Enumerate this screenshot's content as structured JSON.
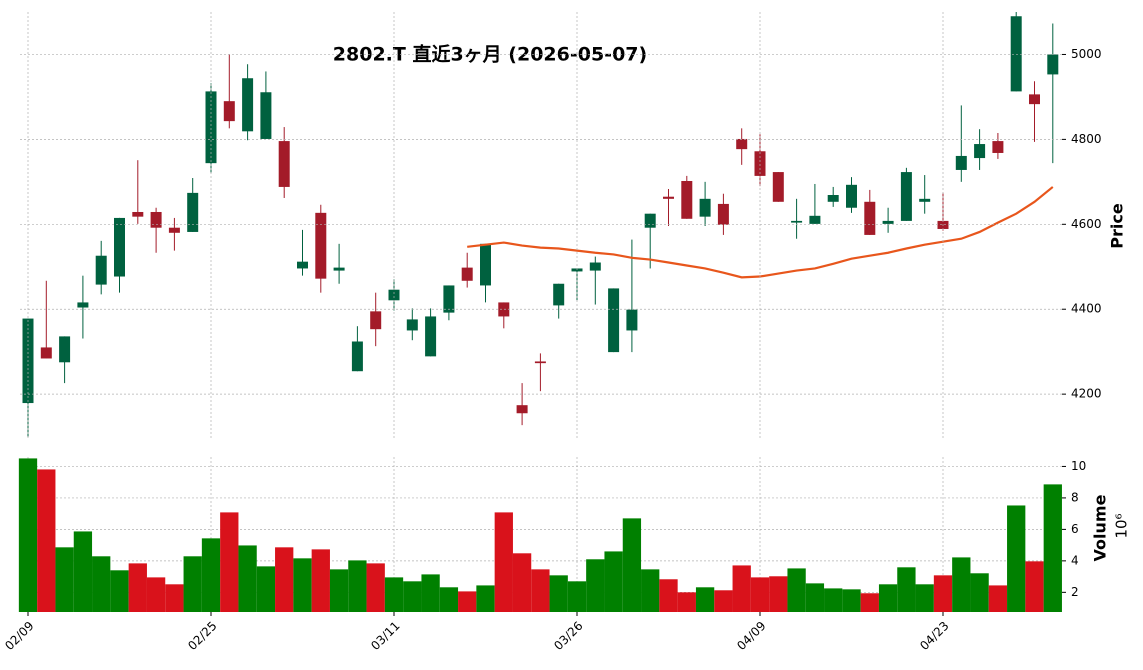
{
  "chart_data": [
    {
      "type": "candlestick",
      "title": "2802.T  直近3ヶ月  (2026-05-07)",
      "y_label": "Price",
      "categories": [
        "02/09",
        null,
        null,
        null,
        null,
        null,
        null,
        null,
        null,
        null,
        "02/25",
        null,
        null,
        null,
        null,
        null,
        null,
        null,
        null,
        null,
        "03/11",
        null,
        null,
        null,
        null,
        null,
        null,
        null,
        null,
        null,
        "03/26",
        null,
        null,
        null,
        null,
        null,
        null,
        null,
        null,
        null,
        "04/09",
        null,
        null,
        null,
        null,
        null,
        null,
        null,
        null,
        null,
        "04/23",
        null,
        null,
        null,
        null,
        null,
        null
      ],
      "open": [
        4179,
        4310,
        4275,
        4404,
        4458,
        4477,
        4629,
        4629,
        4592,
        4582,
        4744,
        4890,
        4819,
        4801,
        4796,
        4496,
        4627,
        4491,
        4254,
        4395,
        4421,
        4350,
        4289,
        4392,
        4498,
        4456,
        4416,
        4174,
        4277,
        4409,
        4489,
        4491,
        4299,
        4350,
        4592,
        4665,
        4702,
        4618,
        4648,
        4801,
        4772,
        4723,
        4604,
        4601,
        4653,
        4639,
        4653,
        4601,
        4608,
        4653,
        4608,
        4728,
        4756,
        4796,
        4913,
        4906,
        4953
      ],
      "high": [
        4378,
        4467,
        4336,
        4479,
        4561,
        4615,
        4751,
        4639,
        4615,
        4709,
        4932,
        5000,
        4977,
        4960,
        4829,
        4587,
        4646,
        4554,
        4360,
        4439,
        4470,
        4402,
        4402,
        4456,
        4533,
        4554,
        4416,
        4226,
        4296,
        4460,
        4496,
        4524,
        4449,
        4564,
        4625,
        4683,
        4714,
        4700,
        4672,
        4826,
        4812,
        4723,
        4660,
        4695,
        4688,
        4711,
        4681,
        4639,
        4733,
        4716,
        4674,
        4880,
        4824,
        4815,
        5100,
        4937,
        5073
      ],
      "low": [
        4099,
        4284,
        4226,
        4331,
        4435,
        4439,
        4601,
        4533,
        4538,
        4582,
        4721,
        4826,
        4798,
        4801,
        4662,
        4479,
        4439,
        4460,
        4254,
        4313,
        4397,
        4327,
        4289,
        4374,
        4451,
        4416,
        4355,
        4127,
        4207,
        4378,
        4421,
        4411,
        4299,
        4299,
        4496,
        4596,
        4613,
        4596,
        4575,
        4740,
        4690,
        4653,
        4566,
        4601,
        4641,
        4627,
        4575,
        4580,
        4608,
        4625,
        4585,
        4700,
        4728,
        4754,
        4913,
        4794,
        4744
      ],
      "close": [
        4378,
        4284,
        4336,
        4416,
        4526,
        4615,
        4618,
        4592,
        4580,
        4674,
        4913,
        4843,
        4944,
        4911,
        4688,
        4512,
        4472,
        4498,
        4324,
        4353,
        4446,
        4376,
        4383,
        4456,
        4467,
        4554,
        4383,
        4155,
        4273,
        4460,
        4496,
        4510,
        4449,
        4399,
        4625,
        4660,
        4613,
        4660,
        4599,
        4777,
        4714,
        4653,
        4608,
        4620,
        4669,
        4693,
        4575,
        4608,
        4723,
        4660,
        4589,
        4761,
        4789,
        4768,
        5090,
        4883,
        5000
      ],
      "up_color": "#00613f",
      "down_color": "#a31b29",
      "moving_average": {
        "color": "#e8561c",
        "values": [
          null,
          null,
          null,
          null,
          null,
          null,
          null,
          null,
          null,
          null,
          null,
          null,
          null,
          null,
          null,
          null,
          null,
          null,
          null,
          null,
          null,
          null,
          null,
          null,
          4547,
          4552,
          4557,
          4550,
          4545,
          4543,
          4538,
          4533,
          4529,
          4521,
          4517,
          4510,
          4503,
          4496,
          4486,
          4475,
          4477,
          4484,
          4491,
          4496,
          4507,
          4519,
          4526,
          4533,
          4543,
          4552,
          4559,
          4566,
          4582,
          4604,
          4625,
          4653,
          4688
        ]
      },
      "ylim": [
        4092,
        5100
      ],
      "yticks": [
        4200,
        4400,
        4600,
        4800,
        5000
      ],
      "grid": true
    },
    {
      "type": "bar",
      "y_label": "Volume",
      "y_scale_label": "10⁶",
      "categories": [
        "02/09",
        null,
        null,
        null,
        null,
        null,
        null,
        null,
        null,
        null,
        "02/25",
        null,
        null,
        null,
        null,
        null,
        null,
        null,
        null,
        null,
        "03/11",
        null,
        null,
        null,
        null,
        null,
        null,
        null,
        null,
        null,
        "03/26",
        null,
        null,
        null,
        null,
        null,
        null,
        null,
        null,
        null,
        "04/09",
        null,
        null,
        null,
        null,
        null,
        null,
        null,
        null,
        null,
        "04/23",
        null,
        null,
        null,
        null,
        null,
        null
      ],
      "values": [
        10.51,
        9.81,
        4.86,
        5.87,
        4.29,
        3.4,
        3.84,
        2.95,
        2.51,
        4.29,
        5.43,
        7.08,
        4.98,
        3.65,
        4.86,
        4.16,
        4.73,
        3.46,
        4.03,
        3.84,
        2.95,
        2.7,
        3.14,
        2.32,
        2.06,
        2.44,
        7.08,
        4.48,
        3.46,
        3.08,
        2.7,
        4.1,
        4.6,
        6.7,
        3.46,
        2.83,
        2.0,
        2.32,
        2.13,
        3.71,
        2.95,
        3.02,
        3.52,
        2.57,
        2.25,
        2.19,
        1.94,
        2.51,
        3.59,
        2.51,
        3.08,
        4.22,
        3.21,
        2.44,
        7.52,
        3.97,
        8.86
      ],
      "up_color": "#008000",
      "down_color": "#d9121b",
      "ylim": [
        0.75,
        10.6
      ],
      "yticks": [
        2,
        4,
        6,
        8,
        10
      ],
      "grid": true
    }
  ]
}
